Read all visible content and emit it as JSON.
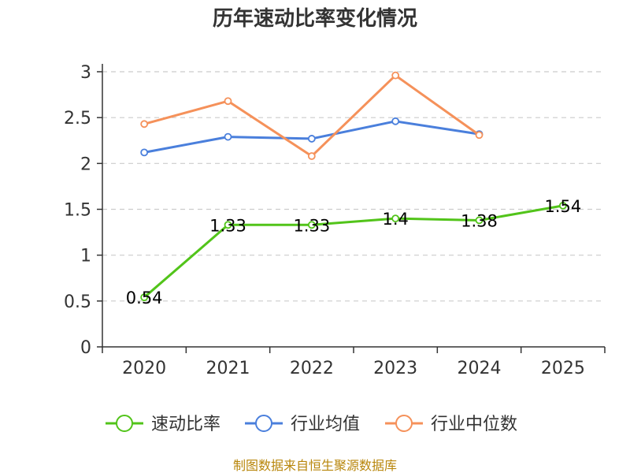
{
  "chart_data": {
    "type": "line",
    "title": "历年速动比率变化情况",
    "categories": [
      "2020",
      "2021",
      "2022",
      "2023",
      "2024",
      "2025"
    ],
    "y_ticks": [
      "0",
      "0.5",
      "1",
      "1.5",
      "2",
      "2.5",
      "3"
    ],
    "ylim": [
      0,
      3
    ],
    "grid": true,
    "legend_position": "bottom",
    "series": [
      {
        "name": "速动比率",
        "color": "#52c41a",
        "values": [
          0.54,
          1.33,
          1.33,
          1.4,
          1.38,
          1.54
        ],
        "labels": [
          "0.54",
          "1.33",
          "1.33",
          "1.4",
          "1.38",
          "1.54"
        ],
        "show_labels": true
      },
      {
        "name": "行业均值",
        "color": "#4a7fdc",
        "values": [
          2.12,
          2.29,
          2.27,
          2.46,
          2.32,
          null
        ],
        "show_labels": false
      },
      {
        "name": "行业中位数",
        "color": "#f5915a",
        "values": [
          2.43,
          2.68,
          2.08,
          2.96,
          2.31,
          null
        ],
        "show_labels": false
      }
    ],
    "source": "制图数据来自恒生聚源数据库"
  }
}
